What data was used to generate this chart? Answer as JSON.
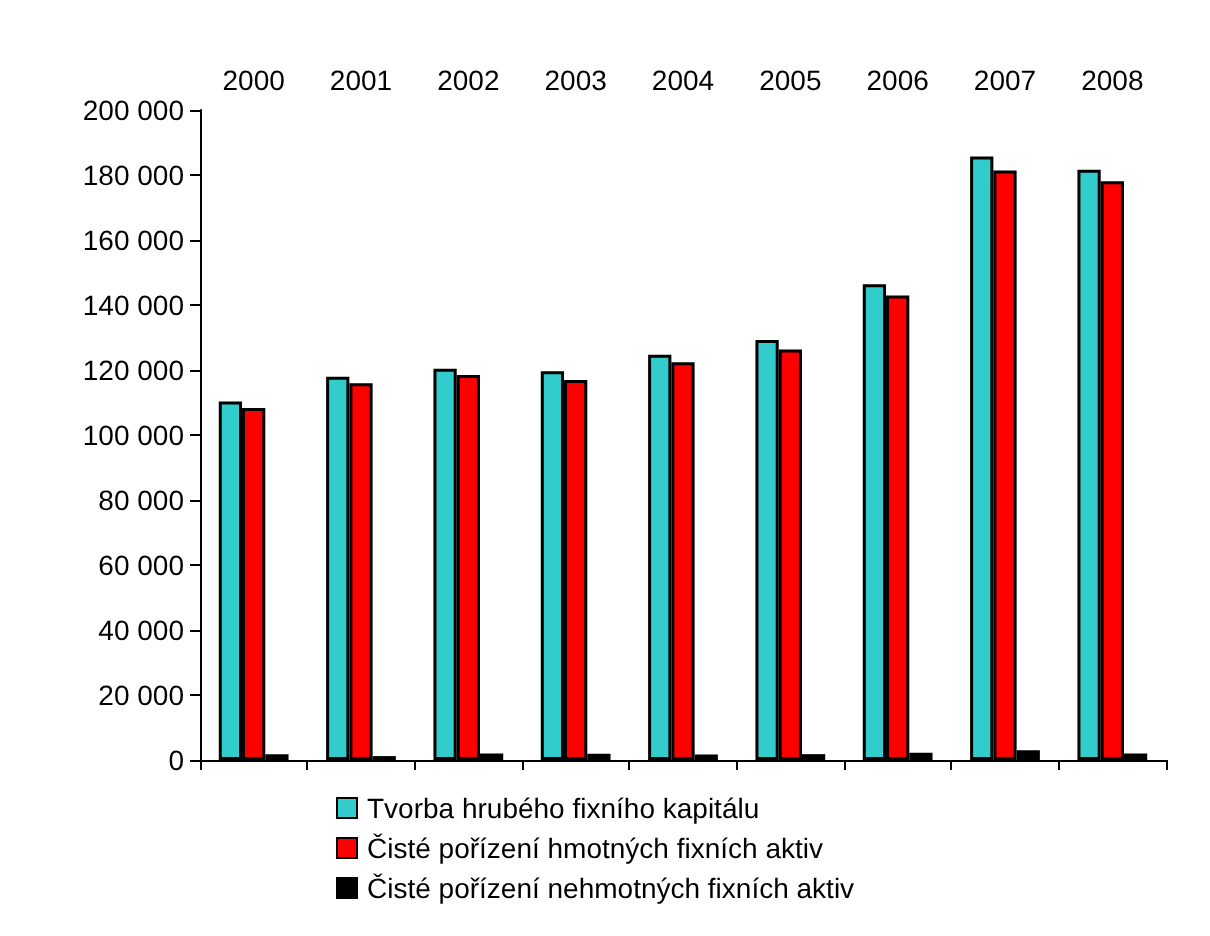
{
  "chart_data": {
    "type": "bar",
    "categories": [
      "2000",
      "2001",
      "2002",
      "2003",
      "2004",
      "2005",
      "2006",
      "2007",
      "2008"
    ],
    "series": [
      {
        "name": "Tvorba hrubého fixního kapitálu",
        "color": "#33cccc",
        "values": [
          110300,
          117900,
          120400,
          119600,
          124700,
          129200,
          146400,
          185700,
          181600
        ]
      },
      {
        "name": "Čisté pořízení hmotných fixních aktiv",
        "color": "#ff0000",
        "values": [
          108300,
          115900,
          118500,
          116900,
          122400,
          126300,
          142900,
          181400,
          178100
        ]
      },
      {
        "name": "Čisté pořízení nehmotných fixních aktiv",
        "color": "#000000",
        "values": [
          1800,
          1200,
          2000,
          1900,
          1700,
          1800,
          2200,
          3000,
          2000
        ]
      }
    ],
    "ylim": [
      0,
      200000
    ],
    "yticks": [
      0,
      20000,
      40000,
      60000,
      80000,
      100000,
      120000,
      140000,
      160000,
      180000,
      200000
    ],
    "grid": false,
    "legend": "bottom"
  }
}
